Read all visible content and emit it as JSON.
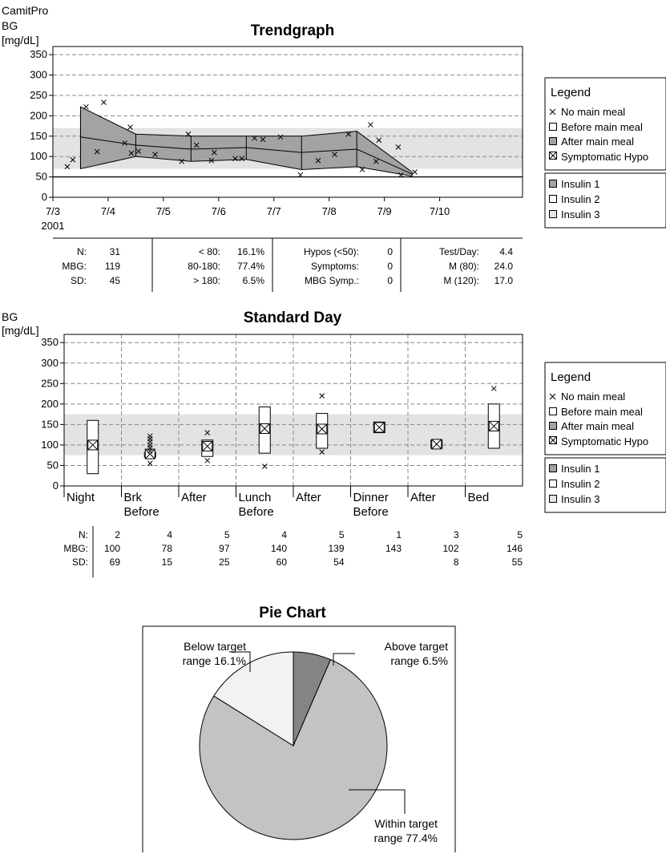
{
  "app_name": "CamitPro",
  "colors": {
    "band": "#e3e3e3",
    "area": "#a3a3a3",
    "pie_within": "#c3c3c3",
    "pie_below": "#f2f2f2",
    "pie_above": "#848484"
  },
  "legend": {
    "title": "Legend",
    "markers": [
      "No main meal",
      "Before main meal",
      "After main meal",
      "Symptomatic Hypo"
    ],
    "insulin": [
      "Insulin 1",
      "Insulin 2",
      "Insulin 3"
    ]
  },
  "trend": {
    "stats": {
      "col1": [
        [
          "N:",
          "31"
        ],
        [
          "MBG:",
          "119"
        ],
        [
          "SD:",
          "45"
        ]
      ],
      "col2": [
        [
          "< 80:",
          "16.1%"
        ],
        [
          "80-180:",
          "77.4%"
        ],
        [
          "> 180:",
          "6.5%"
        ]
      ],
      "col3": [
        [
          "Hypos (<50):",
          "0"
        ],
        [
          "Symptoms:",
          "0"
        ],
        [
          "MBG Symp.:",
          "0"
        ]
      ],
      "col4": [
        [
          "Test/Day:",
          "4.4"
        ],
        [
          "M (80):",
          "24.0"
        ],
        [
          "M (120):",
          "17.0"
        ]
      ]
    }
  },
  "stdday": {
    "stats": {
      "labels": [
        "N:",
        "MBG:",
        "SD:"
      ],
      "n": [
        "2",
        "4",
        "5",
        "4",
        "5",
        "1",
        "3",
        "5"
      ],
      "mbg": [
        "100",
        "78",
        "97",
        "140",
        "139",
        "143",
        "102",
        "146"
      ],
      "sd": [
        "69",
        "15",
        "25",
        "60",
        "54",
        "",
        "8",
        "55"
      ]
    }
  },
  "chart_data": [
    {
      "type": "line",
      "title": "Trendgraph",
      "ylabel": "BG [mg/dL]",
      "ylim": [
        0,
        370
      ],
      "yticks": [
        0,
        50,
        100,
        150,
        200,
        250,
        300,
        350
      ],
      "xlim": [
        0,
        8.5
      ],
      "xticks": [
        {
          "x": 0,
          "label": "7/3"
        },
        {
          "x": 1,
          "label": "7/4"
        },
        {
          "x": 2,
          "label": "7/5"
        },
        {
          "x": 3,
          "label": "7/6"
        },
        {
          "x": 4,
          "label": "7/7"
        },
        {
          "x": 5,
          "label": "7/8"
        },
        {
          "x": 6,
          "label": "7/9"
        },
        {
          "x": 7,
          "label": "7/10"
        }
      ],
      "xsublabel": "2001",
      "target_range": [
        70,
        170
      ],
      "lines": [
        50
      ],
      "series": [
        {
          "kind": "mean",
          "x": [
            0.5,
            1.5,
            2.5,
            3.5,
            4.5,
            5.5,
            6.5
          ],
          "values": [
            148,
            128,
            118,
            122,
            110,
            118,
            57
          ]
        },
        {
          "kind": "upper",
          "x": [
            0.5,
            1.5,
            2.5,
            3.5,
            4.5,
            5.5,
            6.5
          ],
          "values": [
            222,
            155,
            150,
            150,
            150,
            162,
            62
          ]
        },
        {
          "kind": "lower",
          "x": [
            0.5,
            1.5,
            2.5,
            3.5,
            4.5,
            5.5,
            6.5
          ],
          "values": [
            70,
            100,
            88,
            93,
            68,
            75,
            52
          ]
        },
        {
          "kind": "no-main-meal",
          "points": [
            [
              0.26,
              75
            ],
            [
              0.36,
              92
            ],
            [
              0.6,
              222
            ],
            [
              0.8,
              112
            ],
            [
              0.92,
              233
            ],
            [
              1.3,
              133
            ],
            [
              1.4,
              172
            ],
            [
              1.42,
              108
            ],
            [
              1.55,
              113
            ],
            [
              1.85,
              105
            ],
            [
              2.33,
              88
            ],
            [
              2.45,
              155
            ],
            [
              2.6,
              128
            ],
            [
              2.87,
              90
            ],
            [
              2.92,
              110
            ],
            [
              3.3,
              95
            ],
            [
              3.42,
              95
            ],
            [
              3.65,
              145
            ],
            [
              3.8,
              142
            ],
            [
              4.12,
              148
            ],
            [
              4.48,
              55
            ],
            [
              4.8,
              90
            ],
            [
              5.1,
              105
            ],
            [
              5.35,
              155
            ],
            [
              5.6,
              68
            ],
            [
              5.75,
              178
            ],
            [
              5.85,
              88
            ],
            [
              5.9,
              140
            ],
            [
              6.25,
              123
            ],
            [
              6.3,
              55
            ],
            [
              6.55,
              62
            ]
          ]
        }
      ]
    },
    {
      "type": "box",
      "title": "Standard Day",
      "ylabel": "BG [mg/dL]",
      "ylim": [
        0,
        370
      ],
      "yticks": [
        0,
        50,
        100,
        150,
        200,
        250,
        300,
        350
      ],
      "categories": [
        "Night",
        "Brk Before",
        "After",
        "Lunch Before",
        "After",
        "Dinner Before",
        "After",
        "Bed"
      ],
      "target_range": [
        75,
        175
      ],
      "boxes": [
        {
          "min": 30,
          "max": 160,
          "mean": 100,
          "outliers": []
        },
        {
          "min": 70,
          "max": 82,
          "mean": 78,
          "outliers": [
            55,
            85,
            93,
            100,
            108,
            115,
            122
          ]
        },
        {
          "min": 72,
          "max": 112,
          "mean": 97,
          "outliers": [
            62,
            130
          ]
        },
        {
          "min": 80,
          "max": 193,
          "mean": 140,
          "outliers": [
            48
          ]
        },
        {
          "min": 92,
          "max": 177,
          "mean": 139,
          "outliers": [
            220,
            83
          ]
        },
        {
          "min": 130,
          "max": 156,
          "mean": 143,
          "outliers": []
        },
        {
          "min": 92,
          "max": 112,
          "mean": 102,
          "outliers": []
        },
        {
          "min": 92,
          "max": 200,
          "mean": 146,
          "outliers": [
            238
          ]
        }
      ]
    },
    {
      "type": "pie",
      "title": "Pie Chart",
      "slices": [
        {
          "label": "Above target range",
          "value": 6.5,
          "text": "6.5%"
        },
        {
          "label": "Within target range",
          "value": 77.4,
          "text": "77.4%"
        },
        {
          "label": "Below target range",
          "value": 16.1,
          "text": "16.1%"
        }
      ]
    }
  ]
}
